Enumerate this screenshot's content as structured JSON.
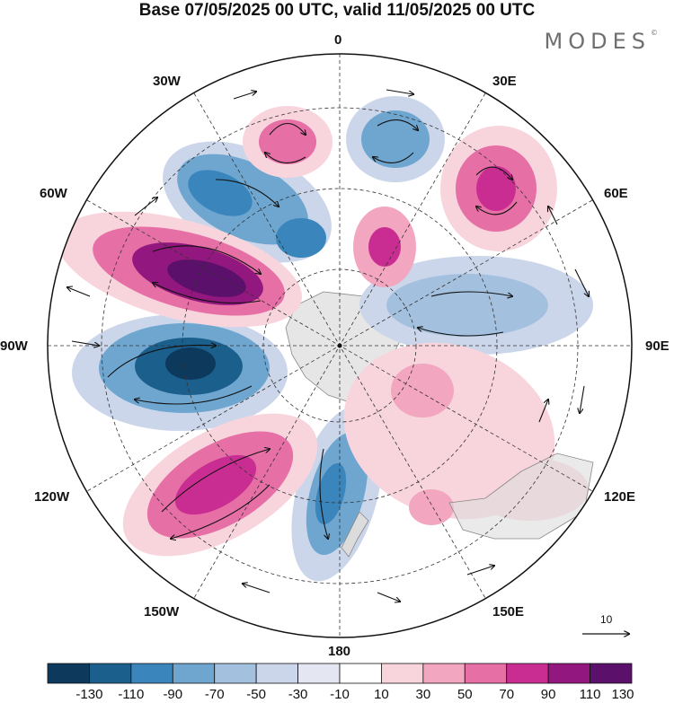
{
  "header": {
    "title": "Base 07/05/2025 00 UTC, valid 11/05/2025 00 UTC",
    "brand": "MODES",
    "brand_mark": "©"
  },
  "map": {
    "projection": "south-polar-stereographic",
    "longitude_labels": [
      "0",
      "30E",
      "60E",
      "90E",
      "120E",
      "150E",
      "180",
      "150W",
      "120W",
      "90W",
      "60W",
      "30W"
    ],
    "vector_reference": {
      "label": "10"
    }
  },
  "colorbar": {
    "labels": [
      "-130",
      "-110",
      "-90",
      "-70",
      "-50",
      "-30",
      "-10",
      "10",
      "30",
      "50",
      "70",
      "90",
      "110",
      "130"
    ],
    "colors": [
      "#0d3a5c",
      "#1b5f8d",
      "#3a85bb",
      "#6ea6cf",
      "#a3c0df",
      "#cbd6ea",
      "#e4e7f2",
      "#ffffff",
      "#f8d5dc",
      "#f2a6bf",
      "#e66fa6",
      "#c92d92",
      "#92177e",
      "#5b106b"
    ]
  }
}
